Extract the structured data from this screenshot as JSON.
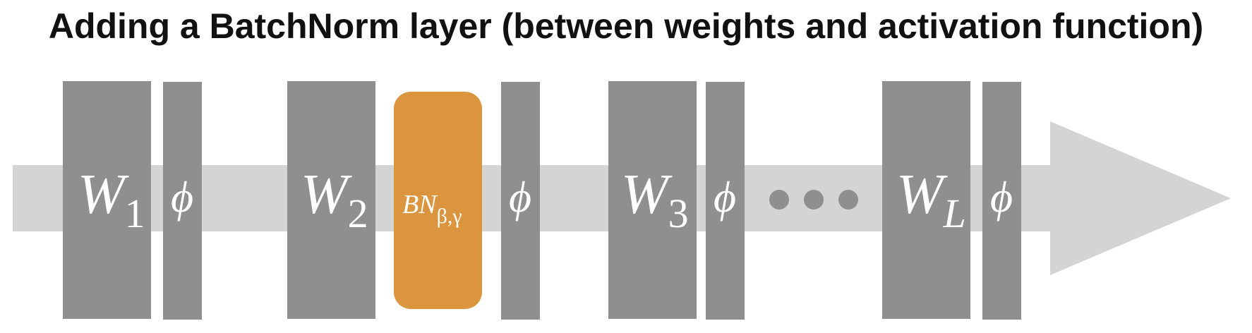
{
  "title": "Adding a BatchNorm layer (between weights and activation function)",
  "colors": {
    "arrow": "#d4d4d4",
    "block": "#8f8f8f",
    "batchnorm": "#db953e",
    "dots": "#8f8f8f",
    "text": "#ffffff"
  },
  "blocks": {
    "w1": {
      "base": "W",
      "sub": "1"
    },
    "phi1": {
      "symbol": "ϕ"
    },
    "w2": {
      "base": "W",
      "sub": "2"
    },
    "bn": {
      "base": "BN",
      "sub": "β,γ"
    },
    "phi2": {
      "symbol": "ϕ"
    },
    "w3": {
      "base": "W",
      "sub": "3"
    },
    "phi3": {
      "symbol": "ϕ"
    },
    "wl": {
      "base": "W",
      "sub": "L"
    },
    "phil": {
      "symbol": "ϕ"
    }
  }
}
